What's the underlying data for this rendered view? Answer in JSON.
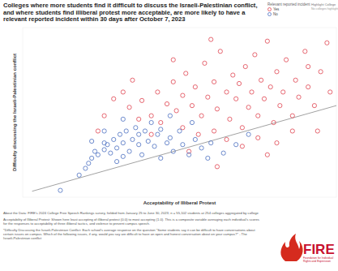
{
  "chart_data": {
    "type": "scatter",
    "title": "Colleges where more students find it difficult to discuss the Israeli-Palestinian conflict, and where students find illiberal protest more acceptable, are more likely to have a relevant reported incident within 30 days after October 7, 2023",
    "x_label": "Acceptability of Illiberal Protest",
    "y_label": "Difficulty discussing the Israeli-Palestinian conflict",
    "legend_title": "Relevant reported incident",
    "highlight_title": "Highlight College",
    "highlight_value": "No colleges highlighted",
    "xlim": [
      0,
      1
    ],
    "ylim": [
      0,
      1
    ],
    "tick_labels": false,
    "grid": false,
    "legend": "top-right",
    "series": [
      {
        "name": "Yes",
        "color": "#e0434f",
        "marker": "circle-open",
        "x": [
          0.34,
          0.38,
          0.41,
          0.43,
          0.46,
          0.48,
          0.49,
          0.51,
          0.52,
          0.54,
          0.55,
          0.57,
          0.58,
          0.59,
          0.61,
          0.62,
          0.63,
          0.65,
          0.66,
          0.67,
          0.68,
          0.69,
          0.7,
          0.71,
          0.72,
          0.73,
          0.74,
          0.75,
          0.76,
          0.77,
          0.78,
          0.79,
          0.8,
          0.81,
          0.82,
          0.83,
          0.84,
          0.86,
          0.87,
          0.88,
          0.9,
          0.91,
          0.93,
          0.95,
          0.97,
          0.98,
          0.41,
          0.37,
          0.44,
          0.51,
          0.56,
          0.61,
          0.65,
          0.7,
          0.75,
          0.81,
          0.86,
          0.32,
          0.29,
          0.35,
          0.48,
          0.6,
          0.24,
          0.26,
          0.53,
          0.94,
          0.62,
          0.78,
          0.91
        ],
        "values": [
          0.53,
          0.57,
          0.48,
          0.62,
          0.55,
          0.68,
          0.51,
          0.6,
          0.73,
          0.54,
          0.65,
          0.48,
          0.79,
          0.59,
          0.68,
          0.52,
          0.86,
          0.62,
          0.46,
          0.72,
          0.58,
          0.67,
          0.41,
          0.77,
          0.53,
          0.62,
          0.84,
          0.48,
          0.69,
          0.58,
          0.92,
          0.65,
          0.44,
          0.74,
          0.54,
          0.62,
          0.81,
          0.48,
          0.69,
          0.59,
          0.86,
          0.65,
          0.54,
          0.74,
          0.91,
          0.62,
          0.37,
          0.46,
          0.44,
          0.41,
          0.37,
          0.39,
          0.34,
          0.3,
          0.35,
          0.32,
          0.39,
          0.62,
          0.58,
          0.69,
          0.81,
          0.93,
          0.39,
          0.48,
          0.27,
          0.39,
          0.18,
          0.25,
          0.77
        ]
      },
      {
        "name": "No",
        "color": "#4a6fc0",
        "marker": "circle-open",
        "x": [
          0.12,
          0.2,
          0.21,
          0.22,
          0.23,
          0.24,
          0.26,
          0.26,
          0.27,
          0.28,
          0.29,
          0.3,
          0.31,
          0.32,
          0.32,
          0.33,
          0.34,
          0.35,
          0.36,
          0.37,
          0.37,
          0.38,
          0.39,
          0.4,
          0.41,
          0.42,
          0.43,
          0.44,
          0.44,
          0.46,
          0.47,
          0.48,
          0.5,
          0.51,
          0.53,
          0.55,
          0.57,
          0.6,
          0.64,
          0.68,
          0.72,
          0.32,
          0.26,
          0.22,
          0.18,
          0.47,
          0.54,
          0.59,
          0.3
        ],
        "values": [
          0.04,
          0.17,
          0.2,
          0.23,
          0.27,
          0.25,
          0.28,
          0.32,
          0.31,
          0.26,
          0.34,
          0.29,
          0.37,
          0.24,
          0.32,
          0.39,
          0.27,
          0.34,
          0.41,
          0.31,
          0.37,
          0.25,
          0.39,
          0.33,
          0.44,
          0.3,
          0.37,
          0.23,
          0.4,
          0.32,
          0.35,
          0.27,
          0.39,
          0.31,
          0.25,
          0.34,
          0.29,
          0.32,
          0.26,
          0.31,
          0.37,
          0.46,
          0.39,
          0.33,
          0.13,
          0.48,
          0.44,
          0.23,
          0.21
        ]
      }
    ],
    "trend_line": {
      "x": [
        0.03,
        1.0
      ],
      "values": [
        0.035,
        0.54
      ]
    },
    "notes": [
      "About the Data: FIRE's 2024 College Free Speech Rankings survey, fielded from January 25 to June 30, 2023; n = 55,102 students at 254 colleges aggregated by college",
      "Acceptability of Illiberal Protest: Shown here least accepting of illiberal protest (0.0) to most accepting (1.0). This is a composite variable averaging each individual's scores for the responses to acceptability of three illiberal tactics, and violence to prevent campus speech.",
      "*Difficulty Discussing the Israeli-Palestinian Conflict: Each school's average response on the question \"Some students say it can be difficult to have conversations about certain issues on campus. Which of the following issues, if any, would you say are difficult to have an open and honest conversation about on your campus?\" - The Israeli-Palestinian conflict"
    ],
    "logo": {
      "name": "FIRE",
      "subtitle": "Foundation for Individual Rights and Expression"
    }
  }
}
